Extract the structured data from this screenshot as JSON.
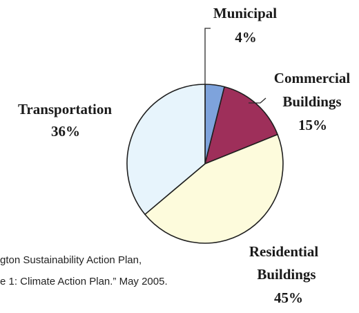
{
  "chart_data": {
    "type": "pie",
    "slices": [
      {
        "label": "Municipal",
        "value": 4,
        "value_text": "4%",
        "color": "#7ea3dc"
      },
      {
        "label": "Commercial Buildings",
        "value": 15,
        "value_text": "15%",
        "color": "#9e2f5a"
      },
      {
        "label": "Residential Buildings",
        "value": 45,
        "value_text": "45%",
        "color": "#fdfbdc"
      },
      {
        "label": "Transportation",
        "value": 36,
        "value_text": "36%",
        "color": "#e7f4fc"
      }
    ],
    "labels": {
      "municipal": {
        "line1": "Municipal",
        "value": "4%"
      },
      "commercial": {
        "line1": "Commercial",
        "line2": "Buildings",
        "value": "15%"
      },
      "residential": {
        "line1": "Residential",
        "line2": "Buildings",
        "value": "45%"
      },
      "transportation": {
        "line1": "Transportation",
        "value": "36%"
      }
    },
    "source_text": {
      "line1": "gton Sustainability Action Plan,",
      "line2": "e 1: Climate Action Plan.” May 2005."
    },
    "outline_color": "#1f1f1f"
  }
}
